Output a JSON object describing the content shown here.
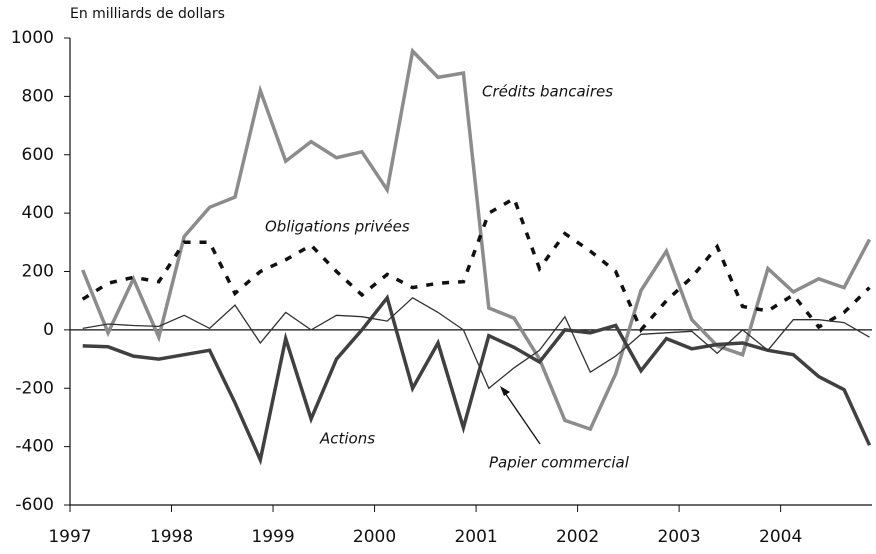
{
  "chart_data": {
    "type": "line",
    "y_axis_label": "En milliards de dollars",
    "x": [
      1997.125,
      1997.375,
      1997.625,
      1997.875,
      1998.125,
      1998.375,
      1998.625,
      1998.875,
      1999.125,
      1999.375,
      1999.625,
      1999.875,
      2000.125,
      2000.375,
      2000.625,
      2000.875,
      2001.125,
      2001.375,
      2001.625,
      2001.875,
      2002.125,
      2002.375,
      2002.625,
      2002.875,
      2003.125,
      2003.375,
      2003.625,
      2003.875,
      2004.125,
      2004.375,
      2004.625,
      2004.875
    ],
    "series": [
      {
        "name": "Crédits bancaires",
        "color": "#8c8c8c",
        "linewidth": 3.5,
        "values": [
          205,
          -10,
          175,
          -25,
          320,
          420,
          455,
          820,
          578,
          645,
          590,
          610,
          480,
          955,
          865,
          880,
          75,
          40,
          -100,
          -310,
          -340,
          -150,
          135,
          270,
          35,
          -55,
          -85,
          210,
          130,
          175,
          145,
          310
        ]
      },
      {
        "name": "Obligations privées",
        "color": "#111111",
        "linewidth": 3.5,
        "dash": true,
        "values": [
          105,
          160,
          180,
          165,
          300,
          300,
          125,
          200,
          240,
          290,
          200,
          120,
          190,
          145,
          160,
          165,
          400,
          450,
          210,
          330,
          270,
          200,
          0,
          100,
          180,
          285,
          80,
          65,
          120,
          10,
          60,
          145
        ]
      },
      {
        "name": "Actions",
        "color": "#404040",
        "linewidth": 3.5,
        "values": [
          -55,
          -58,
          -90,
          -100,
          -85,
          -70,
          -250,
          -445,
          -30,
          -305,
          -100,
          0,
          110,
          -200,
          -45,
          -335,
          -20,
          -60,
          -110,
          0,
          -10,
          15,
          -140,
          -30,
          -65,
          -50,
          -45,
          -70,
          -85,
          -160,
          -205,
          -395
        ]
      },
      {
        "name": "Papier commercial",
        "color": "#333333",
        "linewidth": 1.3,
        "values": [
          5,
          20,
          15,
          12,
          50,
          5,
          85,
          -45,
          60,
          0,
          50,
          45,
          30,
          110,
          60,
          0,
          -200,
          -130,
          -70,
          45,
          -145,
          -90,
          -15,
          -10,
          -5,
          -80,
          0,
          -70,
          35,
          35,
          25,
          -25
        ]
      }
    ],
    "xlim": [
      1997,
      2004.9
    ],
    "xticks": [
      1997,
      1998,
      1999,
      2000,
      2001,
      2002,
      2003,
      2004
    ],
    "ylim": [
      -600,
      1000
    ],
    "yticks": [
      1000,
      800,
      600,
      400,
      200,
      0,
      -200,
      -400,
      -600
    ]
  }
}
